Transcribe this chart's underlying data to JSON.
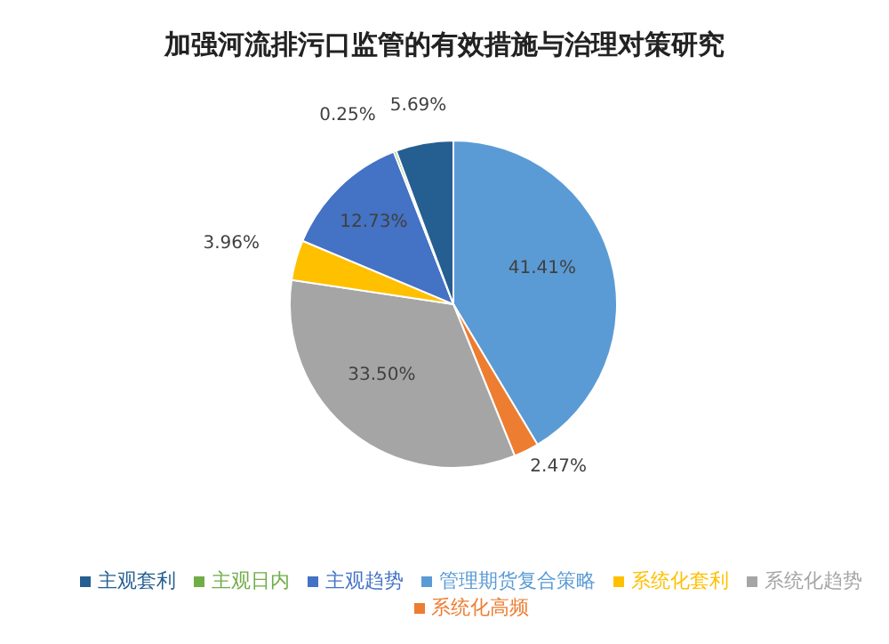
{
  "chart_data": {
    "type": "pie",
    "title": "加强河流排污口监管的有效措施与治理对策研究",
    "categories": [
      "管理期货复合策略",
      "系统化高频",
      "系统化趋势",
      "系统化套利",
      "主观趋势",
      "主观日内",
      "主观套利"
    ],
    "values": [
      41.41,
      2.47,
      33.5,
      3.96,
      12.73,
      0.25,
      5.69
    ],
    "value_labels": [
      "41.41%",
      "2.47%",
      "33.50%",
      "3.96%",
      "12.73%",
      "0.25%",
      "5.69%"
    ],
    "colors": [
      "#5b9bd5",
      "#ed7d31",
      "#a5a5a5",
      "#ffc000",
      "#4472c4",
      "#70ad47",
      "#255e91"
    ],
    "legend": "bottom"
  }
}
